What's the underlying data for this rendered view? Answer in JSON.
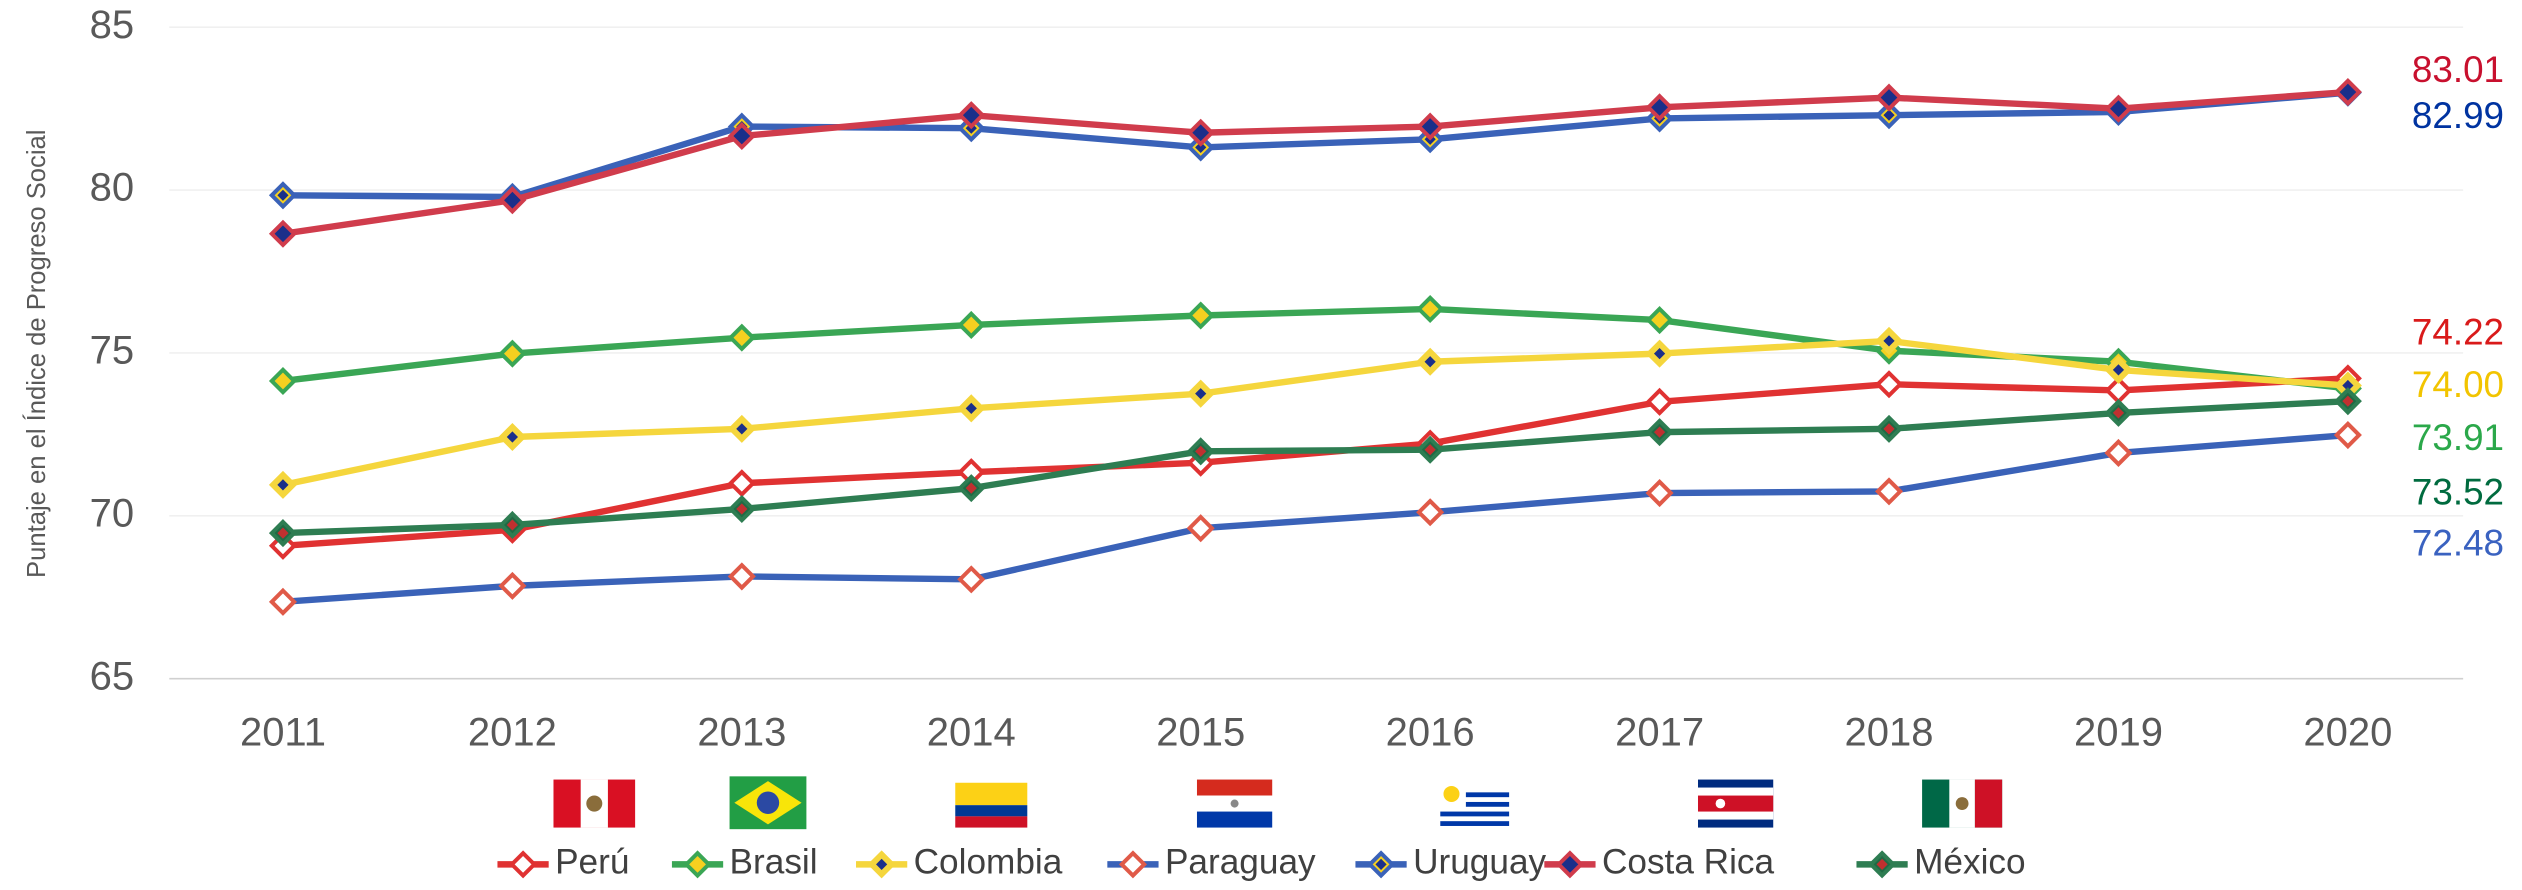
{
  "chart_data": {
    "type": "line",
    "y_label": "Puntaje en el Índice de Progreso Social",
    "categories": [
      "2011",
      "2012",
      "2013",
      "2014",
      "2015",
      "2016",
      "2017",
      "2018",
      "2019",
      "2020"
    ],
    "ylim": [
      65,
      85
    ],
    "yticks": [
      65,
      70,
      75,
      80,
      85
    ],
    "grid": true,
    "legend": "bottom",
    "series": [
      {
        "name": "Perú",
        "color": "#e03232",
        "marker_fill": "#ffffff",
        "marker_edge": "#e03232",
        "end_color": "#d91a1a",
        "end_label": "74.22",
        "values": [
          69.08,
          69.57,
          71.0,
          71.34,
          71.63,
          72.22,
          73.5,
          74.04,
          73.85,
          74.22
        ]
      },
      {
        "name": "Brasil",
        "color": "#3aa655",
        "marker_fill": "#f5d020",
        "marker_edge": "#3aa655",
        "end_color": "#2ba84a",
        "end_label": "73.91",
        "values": [
          74.14,
          74.98,
          75.47,
          75.86,
          76.15,
          76.35,
          76.01,
          75.07,
          74.73,
          73.91
        ]
      },
      {
        "name": "Colombia",
        "color": "#f5d63d",
        "marker_fill": "#f5d63d",
        "marker_edge": "#f5d63d",
        "marker_center": "#1a2f8a",
        "end_color": "#f2c400",
        "end_label": "74.00",
        "values": [
          70.95,
          72.42,
          72.67,
          73.3,
          73.75,
          74.73,
          74.98,
          75.37,
          74.48,
          74.0
        ]
      },
      {
        "name": "Paraguay",
        "color": "#3a62b8",
        "marker_fill": "#ffffff",
        "marker_edge": "#e05a48",
        "end_color": "#3a62c0",
        "end_label": "72.48",
        "values": [
          67.36,
          67.85,
          68.14,
          68.05,
          69.62,
          70.11,
          70.7,
          70.75,
          71.93,
          72.48
        ]
      },
      {
        "name": "Uruguay",
        "color": "#3a62b8",
        "marker_fill": "#f5d020",
        "marker_edge": "#3a62b8",
        "marker_center": "#1a2f8a",
        "end_color": "#0033a0",
        "end_label": "82.99",
        "values": [
          79.84,
          79.79,
          81.95,
          81.9,
          81.31,
          81.56,
          82.2,
          82.3,
          82.4,
          82.99
        ]
      },
      {
        "name": "Costa Rica",
        "color": "#d03c4c",
        "marker_fill": "#1a2f8a",
        "marker_edge": "#d03c4c",
        "end_color": "#c8102e",
        "end_label": "83.01",
        "values": [
          78.66,
          79.69,
          81.66,
          82.3,
          81.76,
          81.95,
          82.54,
          82.84,
          82.5,
          83.01
        ]
      },
      {
        "name": "México",
        "color": "#2e7d52",
        "marker_fill": "#1f6b45",
        "marker_edge": "#2e7d52",
        "marker_center": "#c03030",
        "end_color": "#006b3f",
        "end_label": "73.52",
        "values": [
          69.47,
          69.72,
          70.21,
          70.85,
          71.98,
          72.03,
          72.57,
          72.67,
          73.16,
          73.52
        ]
      }
    ]
  }
}
